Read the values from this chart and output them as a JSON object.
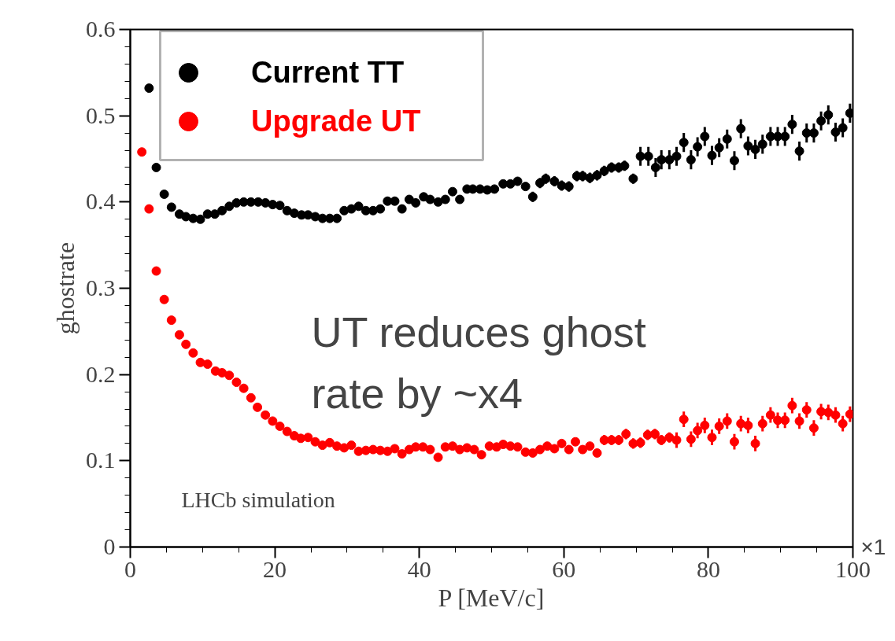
{
  "chart_data": {
    "type": "scatter",
    "xlabel": "P [MeV/c]",
    "ylabel": "ghostrate",
    "xlim": [
      0,
      100
    ],
    "ylim": [
      0,
      0.6
    ],
    "xticks": [
      0,
      20,
      40,
      60,
      80,
      100
    ],
    "yticks": [
      0,
      0.1,
      0.2,
      0.3,
      0.4,
      0.5,
      0.6
    ],
    "grid": false,
    "legend": "top left",
    "marker": "circle",
    "annotations": [
      "UT reduces ghost\nrate by ~x4",
      "LHCb simulation",
      "×1"
    ],
    "series": [
      {
        "name": "Current TT",
        "color": "#000000",
        "x": [
          2.6,
          3.6,
          4.7,
          5.7,
          6.8,
          7.7,
          8.7,
          9.7,
          10.7,
          11.7,
          12.7,
          13.7,
          14.7,
          15.7,
          16.7,
          17.7,
          18.7,
          19.7,
          20.7,
          21.7,
          22.7,
          23.7,
          24.6,
          25.6,
          26.6,
          27.6,
          28.6,
          29.6,
          30.6,
          31.6,
          32.6,
          33.6,
          34.6,
          35.6,
          36.6,
          37.6,
          38.6,
          39.5,
          40.6,
          41.5,
          42.6,
          43.6,
          44.6,
          45.6,
          46.6,
          47.4,
          48.4,
          49.4,
          50.4,
          51.6,
          52.6,
          53.6,
          54.7,
          55.7,
          56.7,
          57.5,
          58.7,
          59.7,
          60.7,
          61.8,
          62.6,
          63.6,
          64.6,
          65.6,
          66.6,
          67.6,
          68.4,
          69.6,
          70.6,
          71.7,
          72.7,
          73.5,
          74.6,
          75.6,
          76.6,
          77.6,
          78.5,
          79.5,
          80.5,
          81.5,
          82.6,
          83.6,
          84.5,
          85.5,
          86.5,
          87.5,
          88.6,
          89.6,
          90.6,
          91.6,
          92.6,
          93.6,
          94.6,
          95.6,
          96.6,
          97.6,
          98.6,
          99.6
        ],
        "values": [
          0.532,
          0.44,
          0.409,
          0.394,
          0.386,
          0.383,
          0.381,
          0.38,
          0.386,
          0.386,
          0.39,
          0.395,
          0.399,
          0.4,
          0.4,
          0.4,
          0.399,
          0.397,
          0.396,
          0.39,
          0.387,
          0.385,
          0.385,
          0.383,
          0.381,
          0.381,
          0.381,
          0.39,
          0.392,
          0.395,
          0.39,
          0.39,
          0.392,
          0.401,
          0.401,
          0.392,
          0.403,
          0.399,
          0.406,
          0.403,
          0.4,
          0.403,
          0.412,
          0.403,
          0.415,
          0.415,
          0.415,
          0.414,
          0.415,
          0.421,
          0.421,
          0.424,
          0.418,
          0.406,
          0.422,
          0.427,
          0.424,
          0.419,
          0.418,
          0.43,
          0.43,
          0.428,
          0.431,
          0.436,
          0.44,
          0.44,
          0.442,
          0.427,
          0.453,
          0.453,
          0.44,
          0.449,
          0.449,
          0.453,
          0.469,
          0.449,
          0.464,
          0.476,
          0.454,
          0.463,
          0.473,
          0.448,
          0.485,
          0.465,
          0.461,
          0.467,
          0.476,
          0.476,
          0.476,
          0.49,
          0.459,
          0.48,
          0.48,
          0.494,
          0.501,
          0.481,
          0.486,
          0.503
        ],
        "errors": [
          null,
          null,
          null,
          null,
          null,
          null,
          null,
          null,
          null,
          null,
          null,
          null,
          null,
          null,
          null,
          null,
          null,
          null,
          null,
          null,
          null,
          null,
          null,
          null,
          null,
          null,
          null,
          null,
          null,
          null,
          null,
          null,
          null,
          null,
          null,
          null,
          null,
          null,
          null,
          null,
          null,
          null,
          null,
          null,
          null,
          null,
          null,
          null,
          null,
          null,
          null,
          null,
          null,
          0.006,
          0.006,
          0.006,
          0.006,
          0.006,
          0.006,
          0.006,
          0.006,
          0.006,
          0.006,
          0.006,
          0.006,
          0.006,
          0.006,
          0.006,
          0.011,
          0.011,
          0.011,
          0.011,
          0.011,
          0.011,
          0.011,
          0.011,
          0.011,
          0.011,
          0.011,
          0.011,
          0.011,
          0.011,
          0.011,
          0.011,
          0.011,
          0.011,
          0.011,
          0.011,
          0.011,
          0.011,
          0.011,
          0.011,
          0.011,
          0.011,
          0.011,
          0.011,
          0.011,
          0.011
        ]
      },
      {
        "name": "Upgrade UT",
        "color": "#ff0000",
        "x": [
          1.6,
          2.6,
          3.6,
          4.7,
          5.7,
          6.8,
          7.7,
          8.7,
          9.7,
          10.7,
          11.8,
          12.7,
          13.7,
          14.7,
          15.7,
          16.7,
          17.6,
          18.7,
          19.7,
          20.7,
          21.7,
          22.7,
          23.6,
          24.6,
          25.6,
          26.6,
          27.6,
          28.6,
          29.6,
          30.6,
          31.6,
          32.6,
          33.6,
          34.6,
          35.6,
          36.6,
          37.6,
          38.6,
          39.5,
          40.5,
          41.5,
          42.6,
          43.6,
          44.6,
          45.6,
          46.6,
          47.6,
          48.6,
          49.7,
          50.7,
          51.6,
          52.6,
          53.6,
          54.7,
          55.7,
          56.7,
          57.7,
          58.7,
          59.7,
          60.7,
          61.6,
          62.6,
          63.6,
          64.6,
          65.6,
          66.6,
          67.6,
          68.6,
          69.6,
          70.6,
          71.6,
          72.6,
          73.5,
          74.6,
          75.6,
          76.6,
          77.6,
          78.5,
          79.5,
          80.5,
          81.5,
          82.6,
          83.6,
          84.5,
          85.5,
          86.5,
          87.5,
          88.6,
          89.6,
          90.6,
          91.6,
          92.6,
          93.6,
          94.6,
          95.6,
          96.6,
          97.6,
          98.6,
          99.6
        ],
        "values": [
          0.458,
          0.392,
          0.32,
          0.287,
          0.263,
          0.246,
          0.235,
          0.225,
          0.214,
          0.212,
          0.204,
          0.202,
          0.199,
          0.191,
          0.184,
          0.173,
          0.162,
          0.153,
          0.146,
          0.14,
          0.134,
          0.129,
          0.126,
          0.127,
          0.122,
          0.118,
          0.121,
          0.117,
          0.115,
          0.118,
          0.111,
          0.112,
          0.113,
          0.112,
          0.111,
          0.114,
          0.108,
          0.113,
          0.116,
          0.116,
          0.113,
          0.104,
          0.116,
          0.117,
          0.113,
          0.115,
          0.113,
          0.107,
          0.117,
          0.116,
          0.119,
          0.117,
          0.116,
          0.11,
          0.109,
          0.113,
          0.117,
          0.114,
          0.12,
          0.113,
          0.122,
          0.113,
          0.117,
          0.109,
          0.124,
          0.124,
          0.124,
          0.131,
          0.12,
          0.121,
          0.13,
          0.131,
          0.124,
          0.127,
          0.124,
          0.148,
          0.125,
          0.135,
          0.141,
          0.127,
          0.14,
          0.146,
          0.122,
          0.143,
          0.141,
          0.12,
          0.143,
          0.153,
          0.147,
          0.147,
          0.164,
          0.146,
          0.159,
          0.138,
          0.157,
          0.156,
          0.153,
          0.143,
          0.154
        ],
        "errors": [
          null,
          null,
          null,
          null,
          null,
          null,
          null,
          null,
          null,
          null,
          null,
          null,
          null,
          null,
          null,
          null,
          null,
          null,
          null,
          null,
          null,
          null,
          null,
          null,
          null,
          null,
          null,
          null,
          null,
          null,
          null,
          null,
          null,
          null,
          null,
          null,
          null,
          null,
          null,
          null,
          null,
          null,
          null,
          null,
          null,
          null,
          null,
          null,
          null,
          null,
          null,
          null,
          null,
          null,
          null,
          null,
          null,
          null,
          null,
          null,
          null,
          null,
          null,
          null,
          0.006,
          0.006,
          0.006,
          0.006,
          0.006,
          0.006,
          0.006,
          0.006,
          0.006,
          0.006,
          0.009,
          0.009,
          0.009,
          0.009,
          0.009,
          0.009,
          0.009,
          0.009,
          0.009,
          0.009,
          0.009,
          0.009,
          0.009,
          0.009,
          0.009,
          0.009,
          0.009,
          0.009,
          0.009,
          0.009,
          0.009,
          0.009,
          0.009,
          0.009,
          0.009
        ]
      }
    ]
  }
}
